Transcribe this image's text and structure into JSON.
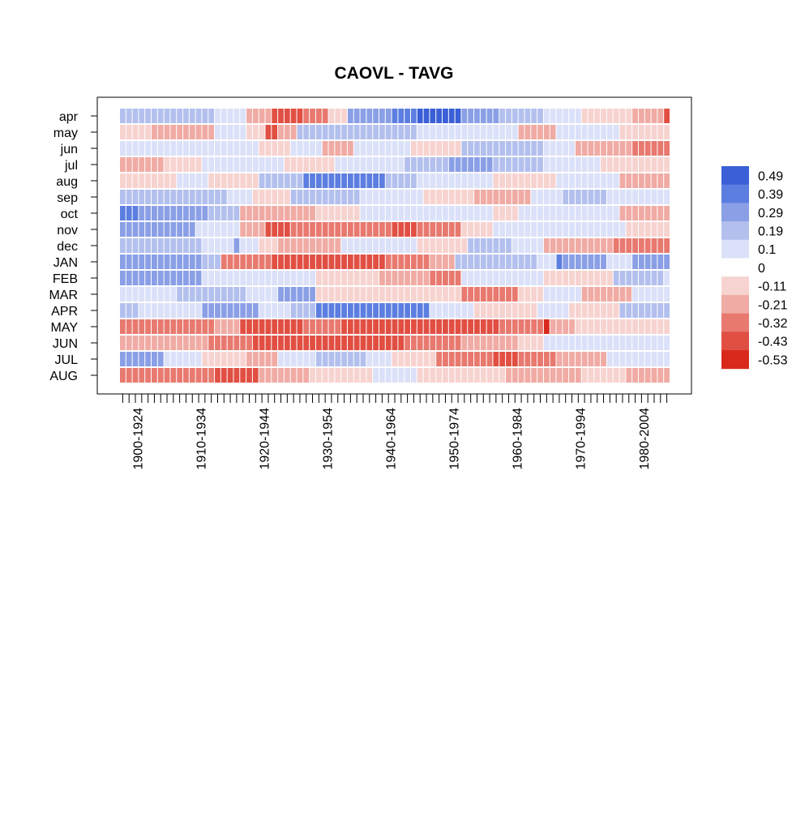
{
  "chart_data": {
    "type": "heatmap",
    "title": "CAOVL - TAVG",
    "rows": [
      "apr",
      "may",
      "jun",
      "jul",
      "aug",
      "sep",
      "oct",
      "nov",
      "dec",
      "JAN",
      "FEB",
      "MAR",
      "APR",
      "MAY",
      "JUN",
      "JUL",
      "AUG"
    ],
    "x_window_start_first": 1900,
    "x_window_start_last": 1986,
    "x_window_length": 25,
    "x_tick_labels": [
      "1900-1924",
      "1910-1934",
      "1920-1944",
      "1930-1954",
      "1940-1964",
      "1950-1974",
      "1960-1984",
      "1970-1994",
      "1980-2004"
    ],
    "legend": {
      "position": "right",
      "labels": [
        "0.49",
        "0.39",
        "0.29",
        "0.19",
        "0.1",
        "0",
        "-0.11",
        "-0.21",
        "-0.32",
        "-0.43",
        "-0.53"
      ],
      "colors": [
        "#3a5fd6",
        "#5c7ee0",
        "#8a9fe6",
        "#b3c0ee",
        "#dbe1f8",
        "#ffffff",
        "#f7d3d0",
        "#f0aba4",
        "#e8796f",
        "#e14f43",
        "#d9291d"
      ]
    },
    "color_scale": {
      "bins": [
        {
          "min": 0.39,
          "max": 0.49,
          "color": "#3a5fd6"
        },
        {
          "min": 0.29,
          "max": 0.39,
          "color": "#5c7ee0"
        },
        {
          "min": 0.19,
          "max": 0.29,
          "color": "#8a9fe6"
        },
        {
          "min": 0.1,
          "max": 0.19,
          "color": "#b3c0ee"
        },
        {
          "min": 0.0,
          "max": 0.1,
          "color": "#dbe1f8"
        },
        {
          "min": -0.11,
          "max": 0.0,
          "color": "#f7d3d0"
        },
        {
          "min": -0.21,
          "max": -0.11,
          "color": "#f0aba4"
        },
        {
          "min": -0.32,
          "max": -0.21,
          "color": "#e8796f"
        },
        {
          "min": -0.43,
          "max": -0.32,
          "color": "#e14f43"
        },
        {
          "min": -0.53,
          "max": -0.43,
          "color": "#d9291d"
        }
      ]
    },
    "segments": [
      {
        "row": "apr",
        "spans": [
          [
            1900,
            1914,
            0.18
          ],
          [
            1915,
            1919,
            0.05
          ],
          [
            1920,
            1923,
            -0.15
          ],
          [
            1924,
            1928,
            -0.38
          ],
          [
            1929,
            1932,
            -0.28
          ],
          [
            1933,
            1935,
            -0.03
          ],
          [
            1936,
            1942,
            0.2
          ],
          [
            1943,
            1946,
            0.35
          ],
          [
            1947,
            1953,
            0.44
          ],
          [
            1954,
            1959,
            0.25
          ],
          [
            1960,
            1966,
            0.15
          ],
          [
            1967,
            1970,
            0.06
          ],
          [
            1971,
            1972,
            0.02
          ],
          [
            1973,
            1980,
            -0.1
          ],
          [
            1981,
            1985,
            -0.14
          ],
          [
            1986,
            1986,
            -0.33
          ]
        ]
      },
      {
        "row": "may",
        "spans": [
          [
            1900,
            1904,
            -0.08
          ],
          [
            1905,
            1914,
            -0.14
          ],
          [
            1915,
            1919,
            0.02
          ],
          [
            1920,
            1922,
            -0.1
          ],
          [
            1923,
            1924,
            -0.35
          ],
          [
            1925,
            1927,
            -0.2
          ],
          [
            1928,
            1931,
            0.12
          ],
          [
            1932,
            1946,
            0.18
          ],
          [
            1947,
            1955,
            0.03
          ],
          [
            1956,
            1962,
            0.08
          ],
          [
            1963,
            1968,
            -0.12
          ],
          [
            1969,
            1973,
            0.02
          ],
          [
            1974,
            1978,
            0.08
          ],
          [
            1979,
            1986,
            -0.1
          ]
        ]
      },
      {
        "row": "jun",
        "spans": [
          [
            1900,
            1913,
            0.1
          ],
          [
            1914,
            1921,
            0.05
          ],
          [
            1922,
            1926,
            -0.05
          ],
          [
            1927,
            1931,
            0.03
          ],
          [
            1932,
            1936,
            -0.15
          ],
          [
            1937,
            1945,
            0.03
          ],
          [
            1946,
            1953,
            -0.08
          ],
          [
            1954,
            1966,
            0.12
          ],
          [
            1967,
            1971,
            0.02
          ],
          [
            1972,
            1980,
            -0.18
          ],
          [
            1981,
            1986,
            -0.25
          ]
        ]
      },
      {
        "row": "jul",
        "spans": [
          [
            1900,
            1906,
            -0.18
          ],
          [
            1907,
            1912,
            -0.1
          ],
          [
            1913,
            1919,
            0.1
          ],
          [
            1920,
            1925,
            0.05
          ],
          [
            1926,
            1933,
            -0.03
          ],
          [
            1934,
            1944,
            0.04
          ],
          [
            1945,
            1951,
            0.12
          ],
          [
            1952,
            1958,
            0.22
          ],
          [
            1959,
            1966,
            0.15
          ],
          [
            1967,
            1975,
            0.1
          ],
          [
            1976,
            1986,
            -0.08
          ]
        ]
      },
      {
        "row": "aug",
        "spans": [
          [
            1900,
            1908,
            -0.08
          ],
          [
            1909,
            1913,
            0.03
          ],
          [
            1914,
            1921,
            -0.1
          ],
          [
            1922,
            1928,
            0.18
          ],
          [
            1929,
            1941,
            0.3
          ],
          [
            1942,
            1946,
            0.15
          ],
          [
            1947,
            1958,
            0.03
          ],
          [
            1959,
            1968,
            -0.08
          ],
          [
            1969,
            1973,
            0.02
          ],
          [
            1974,
            1978,
            0.05
          ],
          [
            1979,
            1986,
            -0.14
          ]
        ]
      },
      {
        "row": "sep",
        "spans": [
          [
            1900,
            1916,
            0.14
          ],
          [
            1917,
            1920,
            0.06
          ],
          [
            1921,
            1926,
            -0.1
          ],
          [
            1927,
            1937,
            0.12
          ],
          [
            1938,
            1947,
            0.03
          ],
          [
            1948,
            1955,
            -0.08
          ],
          [
            1956,
            1964,
            -0.18
          ],
          [
            1965,
            1969,
            0.05
          ],
          [
            1970,
            1976,
            0.15
          ],
          [
            1977,
            1986,
            0.03
          ]
        ]
      },
      {
        "row": "oct",
        "spans": [
          [
            1900,
            1902,
            0.37
          ],
          [
            1903,
            1913,
            0.22
          ],
          [
            1914,
            1918,
            0.12
          ],
          [
            1919,
            1924,
            -0.18
          ],
          [
            1925,
            1930,
            -0.12
          ],
          [
            1931,
            1937,
            -0.05
          ],
          [
            1938,
            1944,
            0.05
          ],
          [
            1945,
            1951,
            0.04
          ],
          [
            1952,
            1958,
            0.08
          ],
          [
            1959,
            1962,
            -0.1
          ],
          [
            1963,
            1968,
            0.05
          ],
          [
            1969,
            1974,
            0.1
          ],
          [
            1975,
            1978,
            0.06
          ],
          [
            1979,
            1986,
            -0.18
          ]
        ]
      },
      {
        "row": "nov",
        "spans": [
          [
            1900,
            1911,
            0.2
          ],
          [
            1912,
            1918,
            0.1
          ],
          [
            1919,
            1922,
            -0.15
          ],
          [
            1923,
            1926,
            -0.35
          ],
          [
            1927,
            1934,
            -0.28
          ],
          [
            1935,
            1942,
            -0.22
          ],
          [
            1943,
            1946,
            -0.32
          ],
          [
            1947,
            1953,
            -0.22
          ],
          [
            1954,
            1958,
            -0.1
          ],
          [
            1959,
            1966,
            0.05
          ],
          [
            1967,
            1974,
            0.02
          ],
          [
            1975,
            1979,
            0.08
          ],
          [
            1980,
            1986,
            -0.05
          ]
        ]
      },
      {
        "row": "dec",
        "spans": [
          [
            1900,
            1912,
            0.15
          ],
          [
            1913,
            1917,
            0.05
          ],
          [
            1918,
            1918,
            0.27
          ],
          [
            1919,
            1921,
            0.02
          ],
          [
            1922,
            1924,
            -0.1
          ],
          [
            1925,
            1934,
            -0.18
          ],
          [
            1935,
            1946,
            0.02
          ],
          [
            1947,
            1954,
            -0.1
          ],
          [
            1955,
            1961,
            0.15
          ],
          [
            1962,
            1966,
            0.05
          ],
          [
            1967,
            1977,
            -0.18
          ],
          [
            1978,
            1986,
            -0.3
          ]
        ]
      },
      {
        "row": "JAN",
        "spans": [
          [
            1900,
            1912,
            0.28
          ],
          [
            1913,
            1915,
            0.12
          ],
          [
            1916,
            1923,
            -0.22
          ],
          [
            1924,
            1941,
            -0.4
          ],
          [
            1942,
            1948,
            -0.3
          ],
          [
            1949,
            1952,
            -0.18
          ],
          [
            1953,
            1965,
            0.15
          ],
          [
            1966,
            1968,
            0.05
          ],
          [
            1969,
            1969,
            0.3
          ],
          [
            1970,
            1976,
            0.22
          ],
          [
            1977,
            1980,
            0.1
          ],
          [
            1981,
            1986,
            0.2
          ]
        ]
      },
      {
        "row": "FEB",
        "spans": [
          [
            1900,
            1912,
            0.22
          ],
          [
            1913,
            1922,
            0.1
          ],
          [
            1923,
            1930,
            0.05
          ],
          [
            1931,
            1940,
            -0.05
          ],
          [
            1941,
            1948,
            -0.15
          ],
          [
            1949,
            1953,
            -0.25
          ],
          [
            1954,
            1966,
            0.08
          ],
          [
            1967,
            1977,
            -0.05
          ],
          [
            1978,
            1985,
            0.12
          ],
          [
            1986,
            1986,
            0.05
          ]
        ]
      },
      {
        "row": "MAR",
        "spans": [
          [
            1900,
            1908,
            0.04
          ],
          [
            1909,
            1919,
            0.12
          ],
          [
            1920,
            1924,
            0.03
          ],
          [
            1925,
            1930,
            0.22
          ],
          [
            1931,
            1942,
            -0.03
          ],
          [
            1943,
            1949,
            -0.1
          ],
          [
            1950,
            1953,
            -0.05
          ],
          [
            1954,
            1962,
            -0.25
          ],
          [
            1963,
            1966,
            -0.05
          ],
          [
            1967,
            1972,
            0.05
          ],
          [
            1973,
            1980,
            -0.18
          ],
          [
            1981,
            1986,
            0.02
          ]
        ]
      },
      {
        "row": "APR",
        "spans": [
          [
            1900,
            1902,
            0.18
          ],
          [
            1903,
            1912,
            0.08
          ],
          [
            1913,
            1921,
            0.22
          ],
          [
            1922,
            1926,
            0.05
          ],
          [
            1927,
            1930,
            0.15
          ],
          [
            1931,
            1941,
            0.38
          ],
          [
            1942,
            1948,
            0.32
          ],
          [
            1949,
            1955,
            0.05
          ],
          [
            1956,
            1965,
            -0.08
          ],
          [
            1966,
            1970,
            0.05
          ],
          [
            1971,
            1978,
            -0.1
          ],
          [
            1979,
            1986,
            0.14
          ]
        ]
      },
      {
        "row": "MAY",
        "spans": [
          [
            1900,
            1914,
            -0.28
          ],
          [
            1915,
            1918,
            -0.18
          ],
          [
            1919,
            1928,
            -0.32
          ],
          [
            1929,
            1934,
            -0.25
          ],
          [
            1935,
            1943,
            -0.38
          ],
          [
            1944,
            1950,
            -0.32
          ],
          [
            1951,
            1959,
            -0.4
          ],
          [
            1960,
            1966,
            -0.28
          ],
          [
            1967,
            1967,
            -0.45
          ],
          [
            1968,
            1971,
            -0.2
          ],
          [
            1972,
            1980,
            -0.08
          ],
          [
            1981,
            1986,
            -0.03
          ]
        ]
      },
      {
        "row": "JUN",
        "spans": [
          [
            1900,
            1913,
            -0.12
          ],
          [
            1914,
            1920,
            -0.22
          ],
          [
            1921,
            1927,
            -0.32
          ],
          [
            1928,
            1933,
            -0.38
          ],
          [
            1934,
            1944,
            -0.35
          ],
          [
            1945,
            1953,
            -0.28
          ],
          [
            1954,
            1962,
            -0.15
          ],
          [
            1963,
            1966,
            -0.05
          ],
          [
            1967,
            1978,
            0.05
          ],
          [
            1979,
            1986,
            0.08
          ]
        ]
      },
      {
        "row": "JUL",
        "spans": [
          [
            1900,
            1906,
            0.2
          ],
          [
            1907,
            1912,
            0.05
          ],
          [
            1913,
            1919,
            -0.05
          ],
          [
            1920,
            1924,
            -0.15
          ],
          [
            1925,
            1930,
            0.03
          ],
          [
            1931,
            1938,
            0.15
          ],
          [
            1939,
            1942,
            0.05
          ],
          [
            1943,
            1949,
            -0.08
          ],
          [
            1950,
            1958,
            -0.3
          ],
          [
            1959,
            1962,
            -0.4
          ],
          [
            1963,
            1968,
            -0.3
          ],
          [
            1969,
            1976,
            -0.12
          ],
          [
            1977,
            1983,
            0.03
          ],
          [
            1984,
            1986,
            0.05
          ]
        ]
      },
      {
        "row": "AUG",
        "spans": [
          [
            1900,
            1914,
            -0.22
          ],
          [
            1915,
            1921,
            -0.32
          ],
          [
            1922,
            1929,
            -0.12
          ],
          [
            1930,
            1939,
            -0.03
          ],
          [
            1940,
            1946,
            0.05
          ],
          [
            1947,
            1960,
            -0.05
          ],
          [
            1961,
            1972,
            -0.12
          ],
          [
            1973,
            1979,
            -0.05
          ],
          [
            1980,
            1986,
            -0.15
          ]
        ]
      }
    ]
  }
}
